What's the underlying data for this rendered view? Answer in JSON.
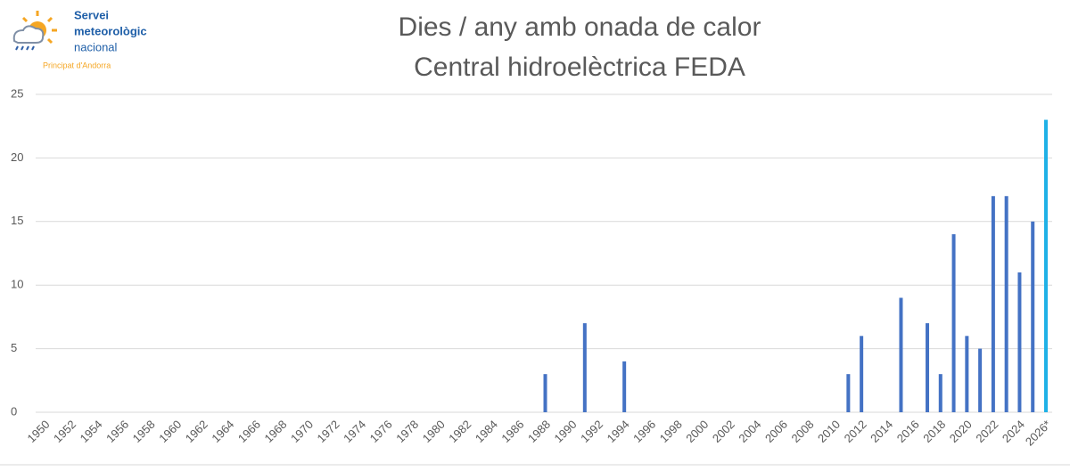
{
  "logo": {
    "line1": "Servei",
    "line2": "meteorològic",
    "line3": "nacional",
    "tagline": "Principat d'Andorra"
  },
  "chart_data": {
    "type": "bar",
    "title": "Dies / any amb onada de calor",
    "subtitle": "Central hidroelèctrica FEDA",
    "categories": [
      "1950",
      null,
      "1952",
      null,
      "1954",
      null,
      "1956",
      null,
      "1958",
      null,
      "1960",
      null,
      "1962",
      null,
      "1964",
      null,
      "1966",
      null,
      "1968",
      null,
      "1970",
      null,
      "1972",
      null,
      "1974",
      null,
      "1976",
      null,
      "1978",
      null,
      "1980",
      null,
      "1982",
      null,
      "1984",
      null,
      "1986",
      null,
      "1988",
      null,
      "1990",
      null,
      "1992",
      null,
      "1994",
      null,
      "1996",
      null,
      "1998",
      null,
      "2000",
      null,
      "2002",
      null,
      "2004",
      null,
      "2006",
      null,
      "2008",
      null,
      "2010",
      null,
      "2012",
      null,
      "2014",
      null,
      "2016",
      null,
      "2018",
      null,
      "2020",
      null,
      "2022",
      null,
      "2024",
      null,
      "2026*"
    ],
    "values": [
      0,
      0,
      0,
      0,
      0,
      0,
      0,
      0,
      0,
      0,
      0,
      0,
      0,
      0,
      0,
      0,
      0,
      0,
      0,
      0,
      0,
      0,
      0,
      0,
      0,
      0,
      0,
      0,
      0,
      0,
      0,
      0,
      0,
      0,
      0,
      0,
      0,
      0,
      3,
      0,
      0,
      7,
      0,
      0,
      4,
      0,
      0,
      0,
      0,
      0,
      0,
      0,
      0,
      0,
      0,
      0,
      0,
      0,
      0,
      0,
      0,
      3,
      6,
      0,
      0,
      9,
      0,
      7,
      3,
      14,
      6,
      5,
      17,
      17,
      11,
      15,
      23
    ],
    "colors": [
      "#4472c4",
      "#4472c4",
      "#4472c4",
      "#4472c4",
      "#4472c4",
      "#4472c4",
      "#4472c4",
      "#4472c4",
      "#4472c4",
      "#4472c4",
      "#4472c4",
      "#4472c4",
      "#4472c4",
      "#4472c4",
      "#4472c4",
      "#4472c4",
      "#4472c4",
      "#4472c4",
      "#4472c4",
      "#4472c4",
      "#4472c4",
      "#4472c4",
      "#4472c4",
      "#4472c4",
      "#4472c4",
      "#4472c4",
      "#4472c4",
      "#4472c4",
      "#4472c4",
      "#4472c4",
      "#4472c4",
      "#4472c4",
      "#4472c4",
      "#4472c4",
      "#4472c4",
      "#4472c4",
      "#4472c4",
      "#4472c4",
      "#4472c4",
      "#4472c4",
      "#4472c4",
      "#4472c4",
      "#4472c4",
      "#4472c4",
      "#4472c4",
      "#4472c4",
      "#4472c4",
      "#4472c4",
      "#4472c4",
      "#4472c4",
      "#4472c4",
      "#4472c4",
      "#4472c4",
      "#4472c4",
      "#4472c4",
      "#4472c4",
      "#4472c4",
      "#4472c4",
      "#4472c4",
      "#4472c4",
      "#4472c4",
      "#4472c4",
      "#4472c4",
      "#4472c4",
      "#4472c4",
      "#4472c4",
      "#4472c4",
      "#4472c4",
      "#4472c4",
      "#4472c4",
      "#4472c4",
      "#4472c4",
      "#4472c4",
      "#4472c4",
      "#4472c4",
      "#4472c4",
      "#1fb1e6"
    ],
    "ylim": [
      0,
      25
    ],
    "yticks": [
      0,
      5,
      10,
      15,
      20,
      25
    ],
    "grid": true
  }
}
